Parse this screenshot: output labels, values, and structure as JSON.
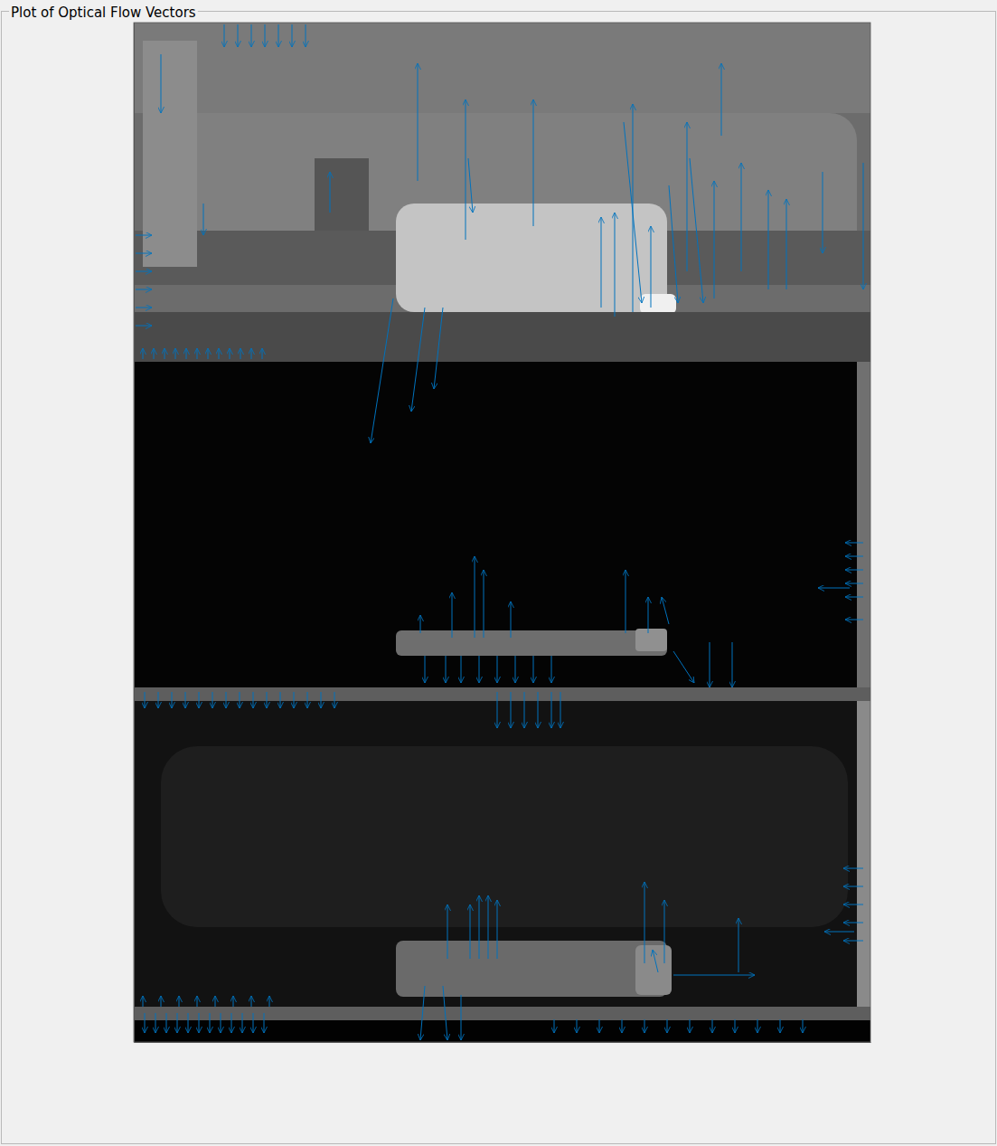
{
  "chart_data": {
    "type": "quiver",
    "title": "Plot of Optical Flow Vectors",
    "color": "#0072bd",
    "tick_labels": false,
    "xlim": [
      0,
      815
    ],
    "ylim": [
      1127,
      0
    ],
    "x": [
      314,
      367,
      650,
      442,
      517,
      532,
      552,
      612,
      572,
      642,
      672,
      702,
      722,
      217,
      287,
      322,
      342,
      30,
      77,
      807,
      762,
      592,
      615,
      542,
      370,
      2,
      2,
      2,
      2,
      2,
      2,
      10,
      22,
      34,
      46,
      58,
      70,
      82,
      94,
      106,
      118,
      130,
      142,
      100,
      115,
      130,
      145,
      160,
      175,
      190,
      377,
      387,
      352,
      417,
      544,
      569,
      592,
      317,
      597,
      637,
      662,
      322,
      345,
      362,
      382,
      402,
      422,
      442,
      462,
      807,
      807,
      807,
      807,
      807,
      807,
      792,
      12,
      27,
      42,
      57,
      72,
      87,
      102,
      117,
      132,
      147,
      162,
      177,
      192,
      207,
      222,
      402,
      417,
      432,
      447,
      462,
      472,
      347,
      372,
      382,
      392,
      402,
      565,
      587,
      669,
      597,
      580,
      807,
      807,
      807,
      807,
      807,
      797,
      322,
      342,
      362,
      12,
      24,
      36,
      48,
      60,
      72,
      84,
      96,
      108,
      120,
      132,
      144,
      465,
      490,
      515,
      540,
      565,
      590,
      615,
      640,
      665,
      690,
      715,
      740,
      10,
      30,
      50,
      70,
      90,
      110,
      130,
      150
    ],
    "y": [
      175,
      240,
      125,
      225,
      315,
      325,
      320,
      275,
      315,
      305,
      275,
      295,
      295,
      210,
      305,
      315,
      315,
      35,
      200,
      155,
      165,
      180,
      150,
      110,
      150,
      235,
      255,
      275,
      295,
      315,
      335,
      372,
      372,
      372,
      372,
      372,
      372,
      372,
      372,
      372,
      372,
      372,
      372,
      2,
      2,
      2,
      2,
      2,
      2,
      2,
      680,
      680,
      680,
      680,
      675,
      675,
      665,
      675,
      695,
      685,
      685,
      700,
      700,
      700,
      700,
      700,
      700,
      700,
      700,
      575,
      590,
      605,
      620,
      635,
      660,
      625,
      740,
      740,
      740,
      740,
      740,
      740,
      740,
      740,
      740,
      740,
      740,
      740,
      740,
      740,
      740,
      740,
      740,
      740,
      740,
      740,
      740,
      1035,
      1035,
      1035,
      1035,
      1035,
      1040,
      1040,
      1050,
      1053,
      1050,
      935,
      955,
      975,
      995,
      1015,
      1005,
      1065,
      1065,
      1075,
      1095,
      1095,
      1095,
      1095,
      1095,
      1095,
      1095,
      1095,
      1095,
      1095,
      1095,
      1095,
      1102,
      1102,
      1102,
      1102,
      1102,
      1102,
      1102,
      1102,
      1102,
      1102,
      1102,
      1102,
      1088,
      1088,
      1088,
      1088,
      1088,
      1088,
      1088,
      1088
    ],
    "u": [
      0,
      0,
      0,
      0,
      0,
      0,
      0,
      0,
      0,
      0,
      0,
      0,
      0,
      0,
      -25,
      -15,
      -10,
      0,
      0,
      0,
      0,
      10,
      15,
      20,
      5,
      18,
      18,
      18,
      18,
      18,
      18,
      0,
      0,
      0,
      0,
      0,
      0,
      0,
      0,
      0,
      0,
      0,
      0,
      0,
      0,
      0,
      0,
      0,
      0,
      0,
      0,
      0,
      0,
      0,
      0,
      0,
      -8,
      0,
      23,
      0,
      0,
      0,
      0,
      0,
      0,
      0,
      0,
      0,
      0,
      -20,
      -20,
      -20,
      -20,
      -20,
      -20,
      -35,
      0,
      0,
      0,
      0,
      0,
      0,
      0,
      0,
      0,
      0,
      0,
      0,
      0,
      0,
      0,
      0,
      0,
      0,
      0,
      0,
      0,
      0,
      0,
      0,
      0,
      0,
      0,
      0,
      0,
      90,
      -6,
      -22,
      -22,
      -22,
      -22,
      -22,
      -33,
      -5,
      5,
      0,
      0,
      0,
      0,
      0,
      0,
      0,
      0,
      0,
      0,
      0,
      0,
      0,
      0,
      0,
      0,
      0,
      0,
      0,
      0,
      0,
      0,
      0,
      0,
      0,
      0,
      0,
      0,
      0,
      0,
      0,
      0,
      0
    ],
    "v": [
      -130,
      -155,
      -80,
      -140,
      -100,
      -115,
      -230,
      -165,
      -90,
      -130,
      -120,
      -110,
      -100,
      -45,
      160,
      115,
      90,
      65,
      35,
      140,
      90,
      130,
      160,
      200,
      60,
      0,
      0,
      0,
      0,
      0,
      0,
      -12,
      -12,
      -12,
      -12,
      -12,
      -12,
      -12,
      -12,
      -12,
      -12,
      -12,
      -12,
      25,
      25,
      25,
      25,
      25,
      25,
      25,
      -90,
      -75,
      -50,
      -40,
      -70,
      -40,
      -30,
      -20,
      35,
      50,
      50,
      30,
      30,
      30,
      30,
      30,
      30,
      30,
      30,
      0,
      0,
      0,
      0,
      0,
      0,
      0,
      18,
      18,
      18,
      18,
      18,
      18,
      18,
      18,
      18,
      18,
      18,
      18,
      18,
      18,
      18,
      40,
      40,
      40,
      40,
      40,
      40,
      -60,
      -60,
      -70,
      -70,
      -65,
      -90,
      -70,
      -60,
      0,
      -25,
      0,
      0,
      0,
      0,
      0,
      0,
      60,
      60,
      50,
      22,
      22,
      22,
      22,
      22,
      22,
      22,
      22,
      22,
      22,
      22,
      22,
      15,
      15,
      15,
      15,
      15,
      15,
      15,
      15,
      15,
      15,
      15,
      15,
      -12,
      -12,
      -12,
      -12,
      -12,
      -12,
      -12,
      -12
    ]
  }
}
